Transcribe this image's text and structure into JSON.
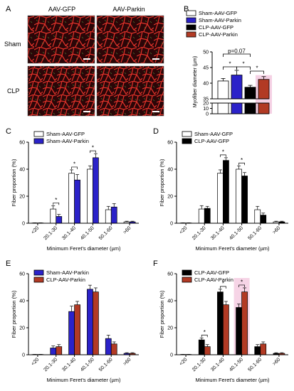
{
  "panel_letters": {
    "A": "A",
    "B": "B",
    "C": "C",
    "D": "D",
    "E": "E",
    "F": "F"
  },
  "panel_a": {
    "col_labels": [
      "AAV-GFP",
      "AAV-Parkin"
    ],
    "row_labels": [
      "Sham",
      "CLP"
    ]
  },
  "colors": {
    "sham_gfp": "#ffffff",
    "sham_parkin": "#2b22c9",
    "clp_gfp": "#000000",
    "clp_parkin": "#b23a24",
    "highlight": "#f3c6dd",
    "micrograph_bg": "#2b0608",
    "membrane": "#e3332a"
  },
  "chart_data": [
    {
      "panel": "B",
      "type": "bar",
      "ylabel": "Myofiber diameter (µm)",
      "ylim_upper": [
        35,
        50
      ],
      "ylim_lower": [
        0,
        20
      ],
      "yticks_upper": [
        35,
        40,
        45,
        50
      ],
      "yticks_lower": [
        0,
        10,
        20
      ],
      "series": [
        {
          "name": "Sham-AAV-GFP",
          "value": 40.7,
          "error": 0.8,
          "color": "#ffffff"
        },
        {
          "name": "Sham-AAV-Parkin",
          "value": 42.6,
          "error": 1.5,
          "color": "#2b22c9"
        },
        {
          "name": "CLP-AAV-GFP",
          "value": 38.7,
          "error": 0.6,
          "color": "#000000"
        },
        {
          "name": "CLP-AAV-Parkin",
          "value": 41.2,
          "error": 0.9,
          "color": "#b23a24"
        }
      ],
      "annotations": [
        "p=0.07",
        "*",
        "*",
        "*"
      ]
    },
    {
      "panel": "C",
      "type": "bar",
      "categories": [
        "<20",
        "20.1-30",
        "30.1-40",
        "40.1-50",
        "50.1-60",
        ">60"
      ],
      "xlabel": "Minimum Feret's diameter (µm)",
      "ylabel": "Fiber proportion (%)",
      "ylim": [
        0,
        60
      ],
      "yticks": [
        0,
        20,
        40,
        60
      ],
      "series": [
        {
          "name": "Sham-AAV-GFP",
          "color": "#ffffff",
          "values": [
            0.2,
            10.5,
            37,
            40,
            10,
            1
          ],
          "errors": [
            0.1,
            2.5,
            2.5,
            2.5,
            2.5,
            0.5
          ]
        },
        {
          "name": "Sham-AAV-Parkin",
          "color": "#2b22c9",
          "values": [
            0.2,
            5,
            32,
            48.5,
            12,
            1
          ],
          "errors": [
            0.1,
            1.5,
            4,
            3,
            2.5,
            0.5
          ]
        }
      ],
      "significance": [
        "*",
        "*",
        "*"
      ]
    },
    {
      "panel": "D",
      "type": "bar",
      "categories": [
        "<20",
        "20.1-30",
        "30.1-40",
        "40.1-50",
        "50.1-60",
        ">60"
      ],
      "xlabel": "Minimum Feret's diameter (µm)",
      "ylabel": "Fiber proportion (%)",
      "ylim": [
        0,
        60
      ],
      "yticks": [
        0,
        20,
        40,
        60
      ],
      "series": [
        {
          "name": "Sham-AAV-GFP",
          "color": "#ffffff",
          "values": [
            0.2,
            10.5,
            37,
            40,
            10,
            1
          ],
          "errors": [
            0.1,
            2.5,
            2.5,
            2.5,
            2.5,
            0.5
          ]
        },
        {
          "name": "CLP-AAV-GFP",
          "color": "#000000",
          "values": [
            0.2,
            11,
            46.5,
            35,
            6,
            1
          ],
          "errors": [
            0.1,
            1.5,
            2,
            2.5,
            1.5,
            0.5
          ]
        }
      ],
      "significance": [
        "*",
        "*"
      ]
    },
    {
      "panel": "E",
      "type": "bar",
      "categories": [
        "<20",
        "20.1-30",
        "30.1-40",
        "40.1-50",
        "50.1-60",
        ">60"
      ],
      "xlabel": "Minimum Feret's diameter (µm)",
      "ylabel": "Fiber proportion (%)",
      "ylim": [
        0,
        60
      ],
      "yticks": [
        0,
        20,
        40,
        60
      ],
      "series": [
        {
          "name": "Sham-AAV-Parkin",
          "color": "#2b22c9",
          "values": [
            0.2,
            5,
            32,
            48.5,
            12,
            1
          ],
          "errors": [
            0.1,
            1.5,
            4,
            3,
            2.5,
            0.5
          ]
        },
        {
          "name": "CLP-AAV-Parkin",
          "color": "#b23a24",
          "values": [
            0.2,
            6,
            37,
            46.5,
            8,
            1
          ],
          "errors": [
            0.1,
            1.5,
            2.5,
            3,
            1.5,
            0.5
          ]
        }
      ],
      "significance": []
    },
    {
      "panel": "F",
      "type": "bar",
      "categories": [
        "<20",
        "20.1-30",
        "30.1-40",
        "40.1-50",
        "50.1-60",
        ">60"
      ],
      "xlabel": "Minimum Feret's diameter (µm)",
      "ylabel": "Fiber proportion (%)",
      "ylim": [
        0,
        60
      ],
      "yticks": [
        0,
        20,
        40,
        60
      ],
      "series": [
        {
          "name": "CLP-AAV-GFP",
          "color": "#000000",
          "values": [
            0.2,
            11,
            46.5,
            35,
            6,
            1
          ],
          "errors": [
            0.1,
            1.5,
            2,
            2.5,
            1.5,
            0.5
          ]
        },
        {
          "name": "CLP-AAV-Parkin",
          "color": "#b23a24",
          "values": [
            0.2,
            6,
            37,
            46.5,
            8,
            1
          ],
          "errors": [
            0.1,
            1.5,
            2.5,
            3,
            1.5,
            0.5
          ]
        }
      ],
      "significance": [
        "*",
        "*",
        "*"
      ]
    }
  ]
}
